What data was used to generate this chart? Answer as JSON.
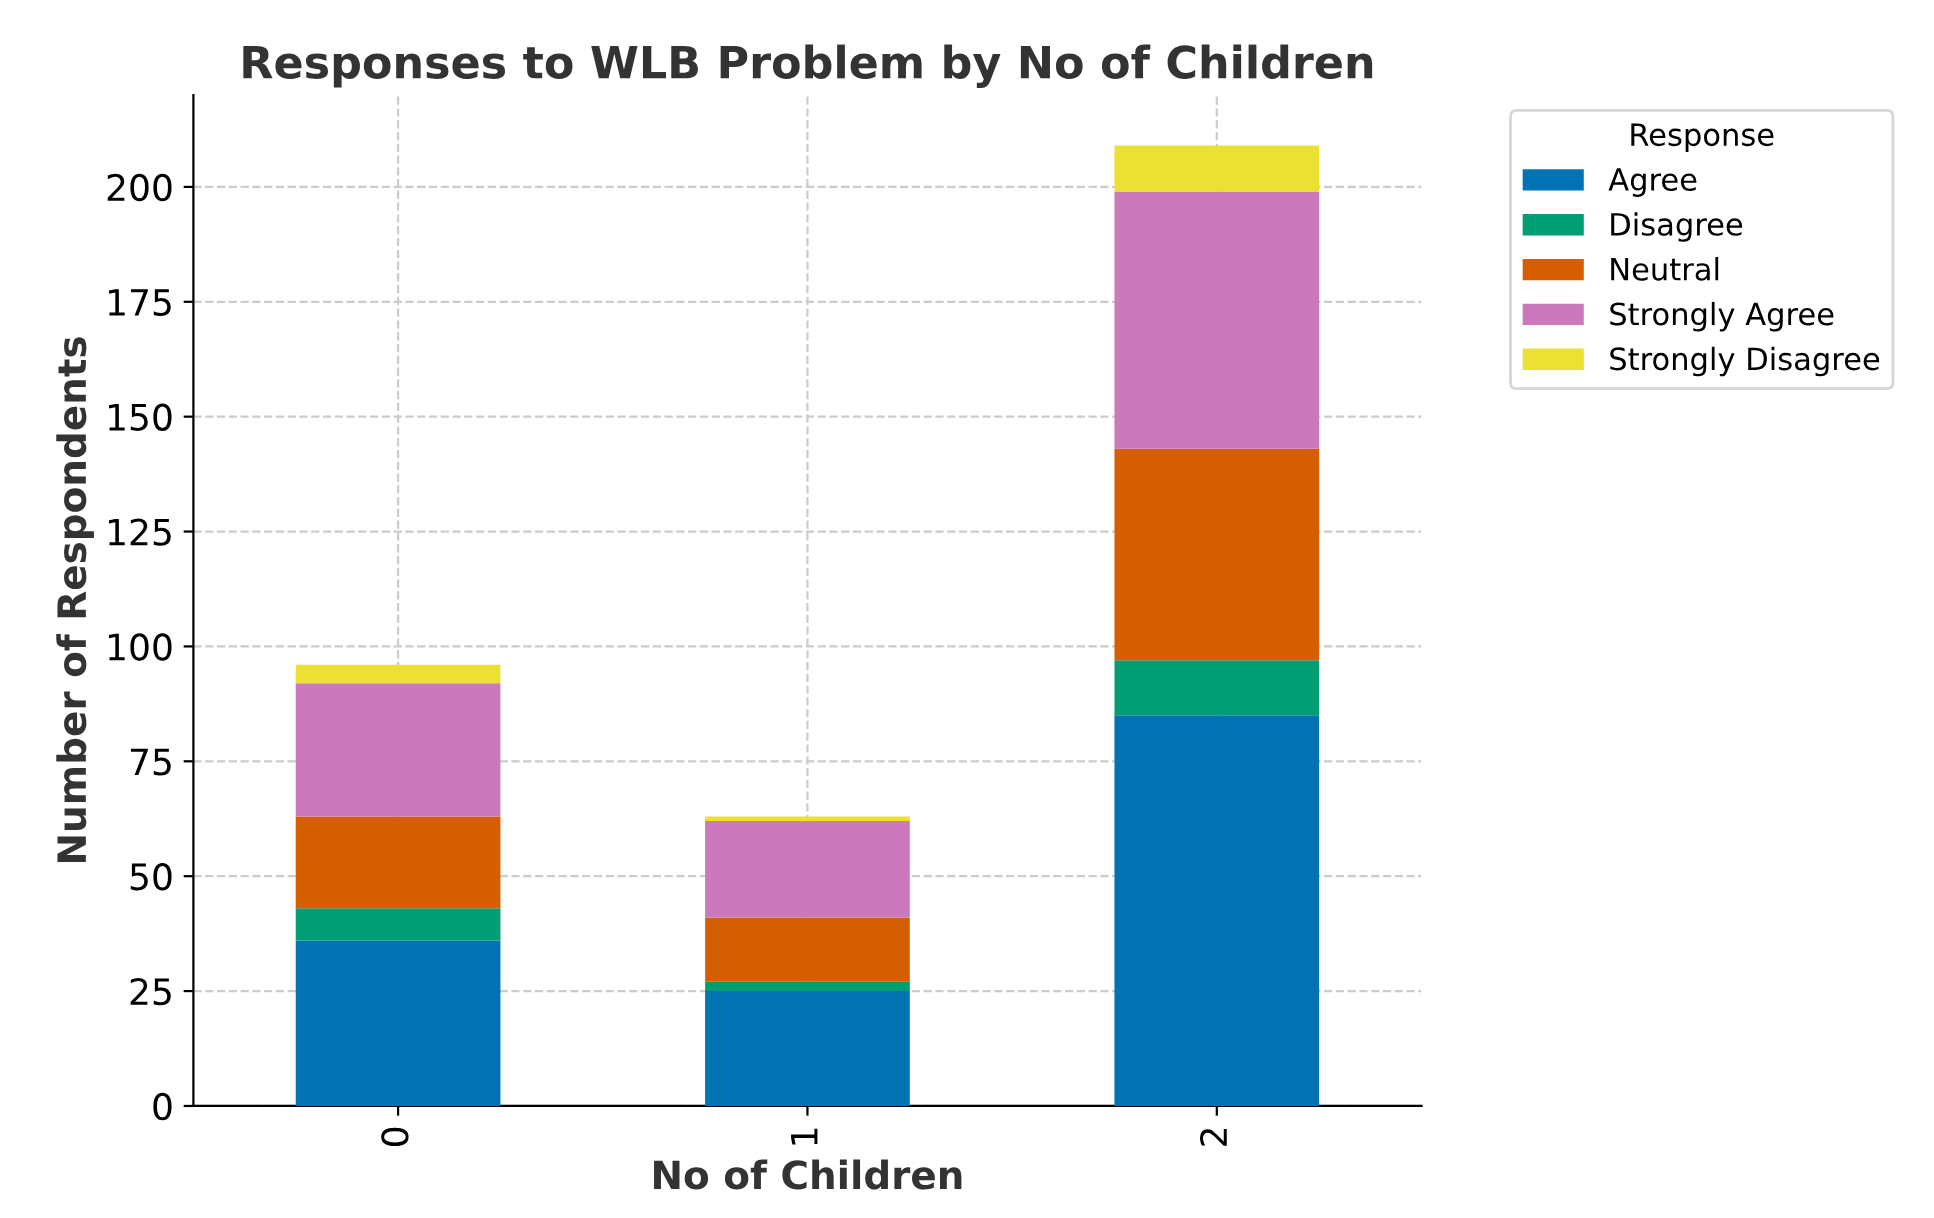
{
  "chart_data": {
    "type": "bar",
    "stacked": true,
    "title": "Responses to WLB Problem by No of Children",
    "xlabel": "No of Children",
    "ylabel": "Number of Respondents",
    "legend_title": "Response",
    "legend": "top right",
    "grid": true,
    "categories": [
      "0",
      "1",
      "2"
    ],
    "series": [
      {
        "name": "Agree",
        "color": "#0173b2",
        "values": [
          36,
          25,
          85
        ]
      },
      {
        "name": "Disagree",
        "color": "#029e73",
        "values": [
          7,
          2,
          12
        ]
      },
      {
        "name": "Neutral",
        "color": "#d55e00",
        "values": [
          20,
          14,
          46
        ]
      },
      {
        "name": "Strongly Agree",
        "color": "#cc78bc",
        "values": [
          29,
          21,
          56
        ]
      },
      {
        "name": "Strongly Disagree",
        "color": "#ece133",
        "values": [
          4,
          1,
          10
        ]
      }
    ],
    "ylim": [
      0,
      220
    ],
    "yticks": [
      0,
      25,
      50,
      75,
      100,
      125,
      150,
      175,
      200
    ]
  }
}
